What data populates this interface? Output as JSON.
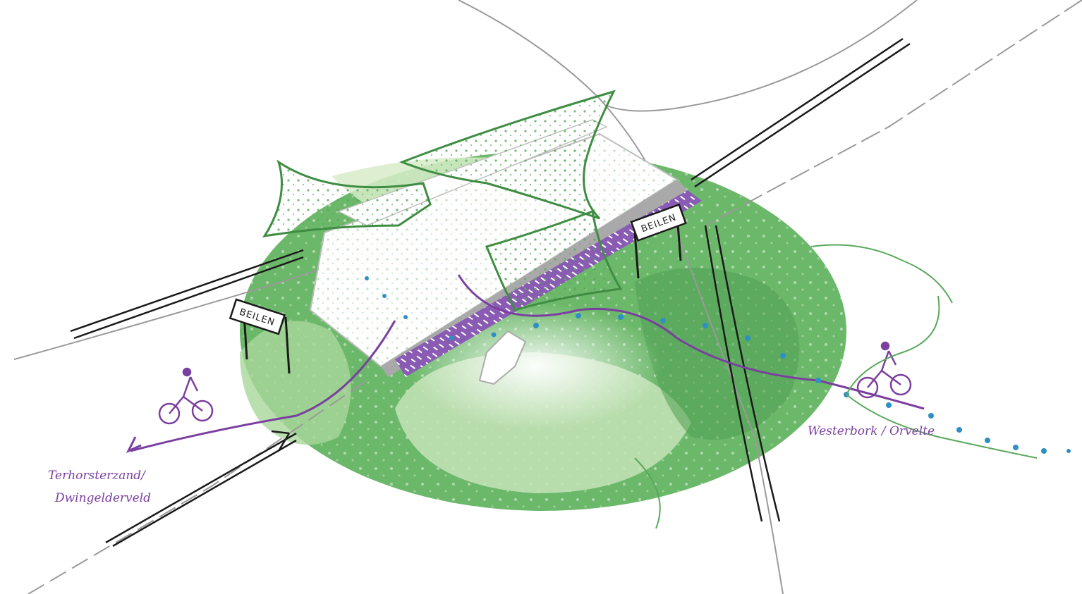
{
  "signs": [
    {
      "text": "BEILEN"
    },
    {
      "text": "BEILEN"
    }
  ],
  "labels": {
    "west_line1": "Terhorsterzand/",
    "west_line2": "Dwingelderveld",
    "east": "Westerbork / Orvelte"
  },
  "colors": {
    "dark_green": "#5aa85c",
    "mid_green": "#8fcb86",
    "light_green": "#d7ecc8",
    "purple": "#7b3fa0",
    "blue_dots": "#2f8fc4",
    "road": "#9a9a9a"
  },
  "icons": [
    "cyclist-icon",
    "cyclist-icon",
    "arrow-icon"
  ]
}
